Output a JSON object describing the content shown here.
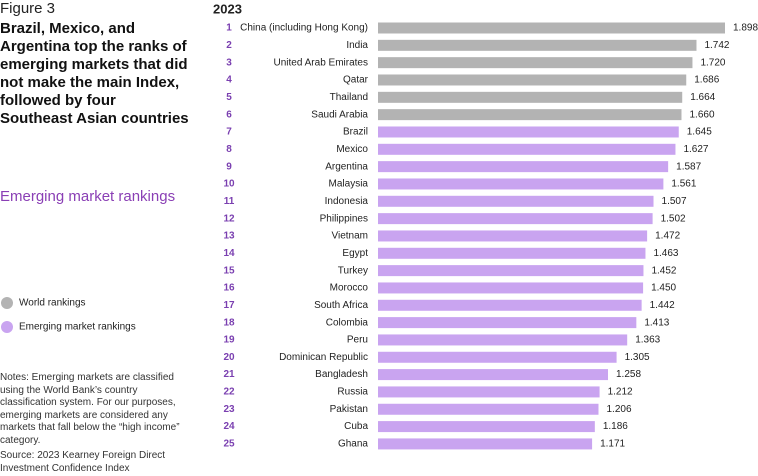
{
  "figure": "Figure 3",
  "notes": "Notes: Emerging markets are classified using the World Bank’s country classification system. For our purposes, emerging markets are considered any markets that fall below the “high income” category.",
  "source": "Source: 2023 Kearney Foreign Direct Investment Confidence Index",
  "chart_data": {
    "type": "bar",
    "orientation": "horizontal",
    "title": "Brazil, Mexico, and Argentina top the ranks of emerging markets that did not make the main Index, followed by four Southeast Asian countries",
    "subtitle": "Emerging market rankings",
    "year": "2023",
    "ranks": [
      "1",
      "2",
      "3",
      "4",
      "5",
      "6",
      "7",
      "8",
      "9",
      "10",
      "11",
      "12",
      "13",
      "14",
      "15",
      "16",
      "17",
      "18",
      "19",
      "20",
      "21",
      "22",
      "23",
      "24",
      "25"
    ],
    "categories": [
      "China (including Hong Kong)",
      "India",
      "United Arab Emirates",
      "Qatar",
      "Thailand",
      "Saudi Arabia",
      "Brazil",
      "Mexico",
      "Argentina",
      "Malaysia",
      "Indonesia",
      "Philippines",
      "Vietnam",
      "Egypt",
      "Turkey",
      "Morocco",
      "South Africa",
      "Colombia",
      "Peru",
      "Dominican Republic",
      "Bangladesh",
      "Russia",
      "Pakistan",
      "Cuba",
      "Ghana"
    ],
    "values": [
      1.898,
      1.742,
      1.72,
      1.686,
      1.664,
      1.66,
      1.645,
      1.627,
      1.587,
      1.561,
      1.507,
      1.502,
      1.472,
      1.463,
      1.452,
      1.45,
      1.442,
      1.413,
      1.363,
      1.305,
      1.258,
      1.212,
      1.206,
      1.186,
      1.171
    ],
    "value_labels": [
      "1.898",
      "1.742",
      "1.720",
      "1.686",
      "1.664",
      "1.660",
      "1.645",
      "1.627",
      "1.587",
      "1.561",
      "1.507",
      "1.502",
      "1.472",
      "1.463",
      "1.452",
      "1.450",
      "1.442",
      "1.413",
      "1.363",
      "1.305",
      "1.258",
      "1.212",
      "1.206",
      "1.186",
      "1.171"
    ],
    "colors": [
      "#b3b3b3",
      "#b3b3b3",
      "#b3b3b3",
      "#b3b3b3",
      "#b3b3b3",
      "#b3b3b3",
      "#c9a4f0",
      "#c9a4f0",
      "#c9a4f0",
      "#c9a4f0",
      "#c9a4f0",
      "#c9a4f0",
      "#c9a4f0",
      "#c9a4f0",
      "#c9a4f0",
      "#c9a4f0",
      "#c9a4f0",
      "#c9a4f0",
      "#c9a4f0",
      "#c9a4f0",
      "#c9a4f0",
      "#c9a4f0",
      "#c9a4f0",
      "#c9a4f0",
      "#c9a4f0"
    ],
    "rank_color": "#7a3fb0",
    "legend": [
      {
        "name": "World rankings",
        "color": "#b3b3b3"
      },
      {
        "name": "Emerging market rankings",
        "color": "#c9a4f0"
      }
    ]
  }
}
